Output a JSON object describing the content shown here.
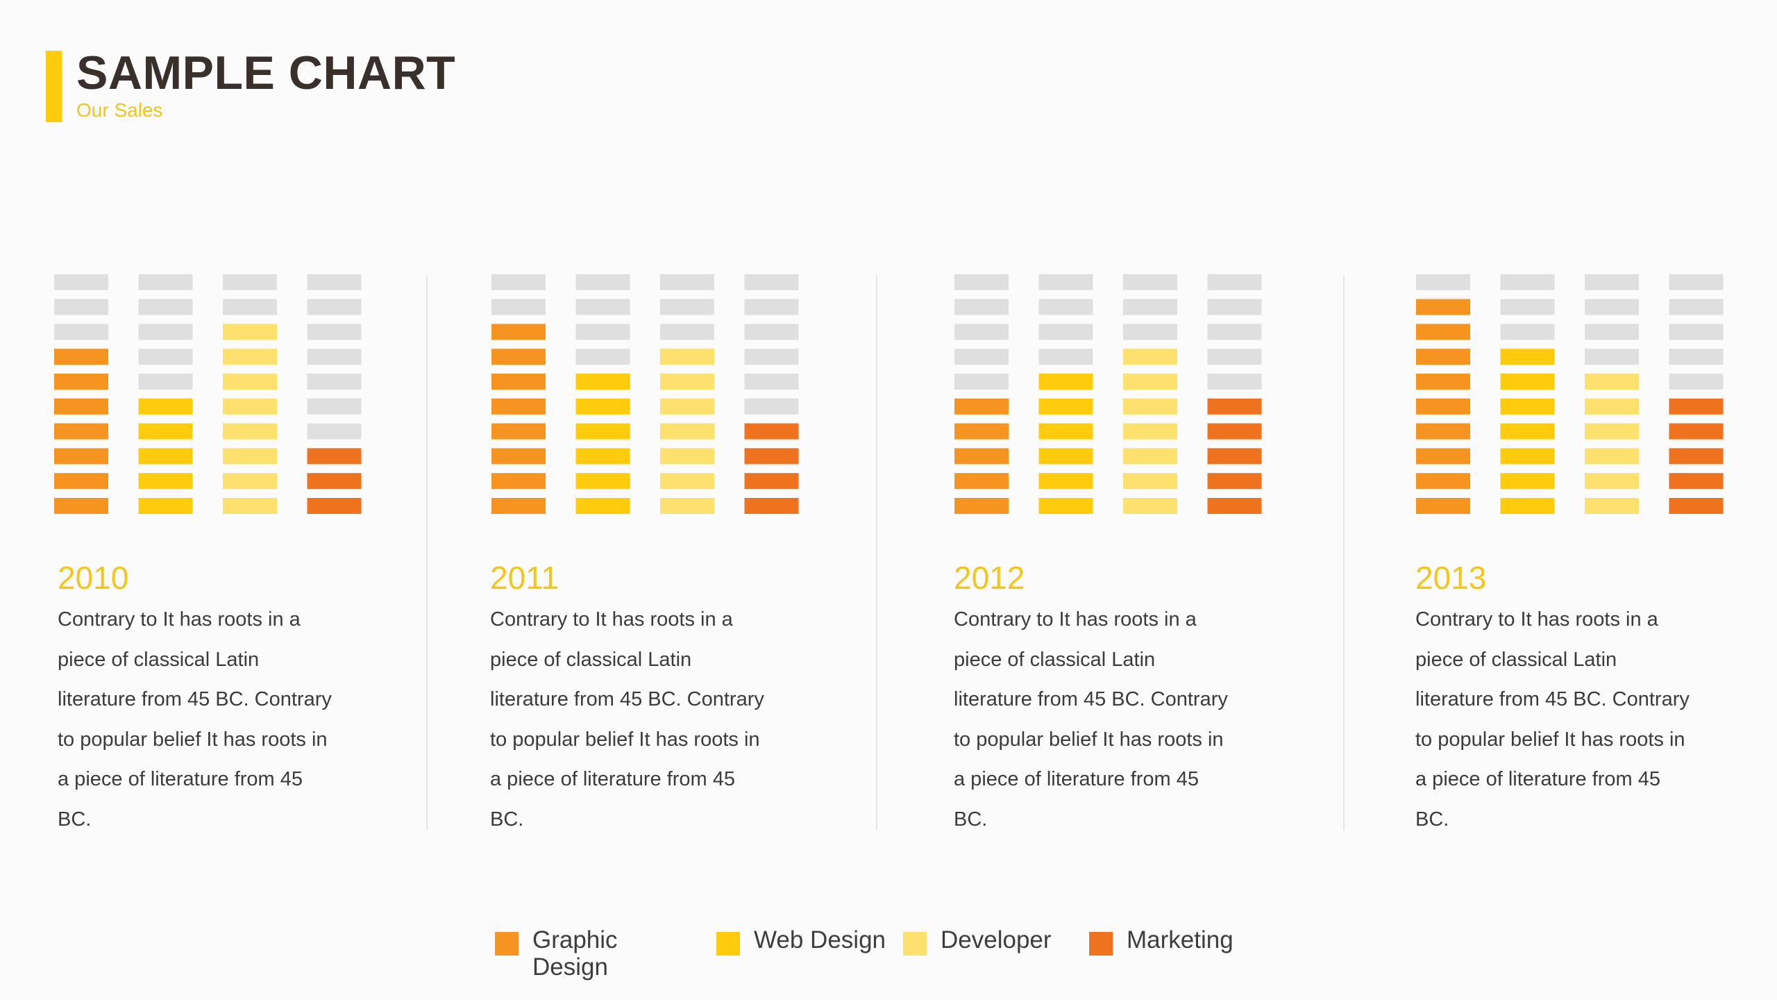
{
  "title": "SAMPLE CHART",
  "subtitle": "Our Sales",
  "chart_data": {
    "type": "bar",
    "title": "SAMPLE CHART",
    "subtitle": "Our Sales",
    "categories": [
      "2010",
      "2011",
      "2012",
      "2013"
    ],
    "unit_max": 10,
    "series": [
      {
        "name": "Graphic Design",
        "color": "#f69421",
        "values": [
          7,
          8,
          5,
          9
        ]
      },
      {
        "name": "Web Design",
        "color": "#fecb0d",
        "values": [
          5,
          6,
          6,
          7
        ]
      },
      {
        "name": "Developer",
        "color": "#fde06e",
        "values": [
          8,
          7,
          7,
          6
        ]
      },
      {
        "name": "Marketing",
        "color": "#ef721e",
        "values": [
          3,
          4,
          5,
          5
        ]
      }
    ],
    "empty_color": "#dfdfdf"
  },
  "panels": [
    {
      "year": "2010",
      "lines": [
        "Contrary to It has roots in a",
        "piece of classical Latin",
        "literature from 45 BC. Contrary",
        "to popular belief It has roots in",
        "a piece of literature from 45",
        "BC."
      ]
    },
    {
      "year": "2011",
      "lines": [
        "Contrary to It has roots in a",
        "piece of classical Latin",
        "literature from 45 BC. Contrary",
        "to popular belief It has roots in",
        "a piece of literature from 45",
        "BC."
      ]
    },
    {
      "year": "2012",
      "lines": [
        "Contrary to It has roots in a",
        "piece of classical Latin",
        "literature from 45 BC. Contrary",
        "to popular belief It has roots in",
        "a piece of literature from 45",
        "BC."
      ]
    },
    {
      "year": "2013",
      "lines": [
        "Contrary to It has roots in a",
        "piece of classical Latin",
        "literature from 45 BC. Contrary",
        "to popular belief It has roots in",
        "a piece of literature from 45",
        "BC."
      ]
    }
  ],
  "legend": [
    {
      "label": "Graphic Design",
      "color": "#f69421"
    },
    {
      "label": "Web Design",
      "color": "#fecb0d"
    },
    {
      "label": "Developer",
      "color": "#fde06e"
    },
    {
      "label": "Marketing",
      "color": "#ef721e"
    }
  ]
}
